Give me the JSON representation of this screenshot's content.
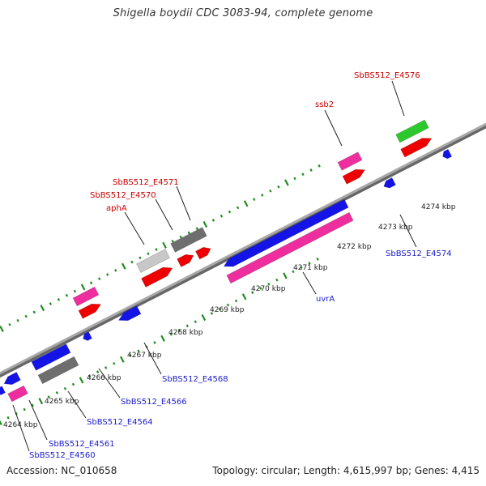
{
  "title": "Shigella boydii CDC 3083-94, complete genome",
  "footer": {
    "accession": "Accession: NC_010658",
    "summary": "Topology: circular; Length: 4,615,997 bp; Genes: 4,415"
  },
  "colors": {
    "backbone": "#8c8c8c",
    "tick": "#1e8c1e",
    "red": "#ee0000",
    "magenta": "#ee2d9e",
    "blue": "#1414e6",
    "gray_dark": "#6e6e6e",
    "gray_light": "#c8c8c8",
    "green": "#2dc82d",
    "label_top": "#cc0000",
    "label_bottom": "#1a1acc",
    "kbp_text": "#222222"
  },
  "kbp_labels": [
    "4264 kbp",
    "4265 kbp",
    "4266 kbp",
    "4267 kbp",
    "4268 kbp",
    "4269 kbp",
    "4270 kbp",
    "4271 kbp",
    "4272 kbp",
    "4273 kbp",
    "4274 kbp"
  ],
  "gene_labels_top": [
    "SbBS512_E4576",
    "ssb2",
    "SbBS512_E4571",
    "SbBS512_E4570",
    "aphA"
  ],
  "gene_labels_bottom": [
    "SbBS512_E4574",
    "uvrA",
    "SbBS512_E4568",
    "SbBS512_E4566",
    "SbBS512_E4564",
    "SbBS512_E4561",
    "SbBS512_E4560"
  ]
}
